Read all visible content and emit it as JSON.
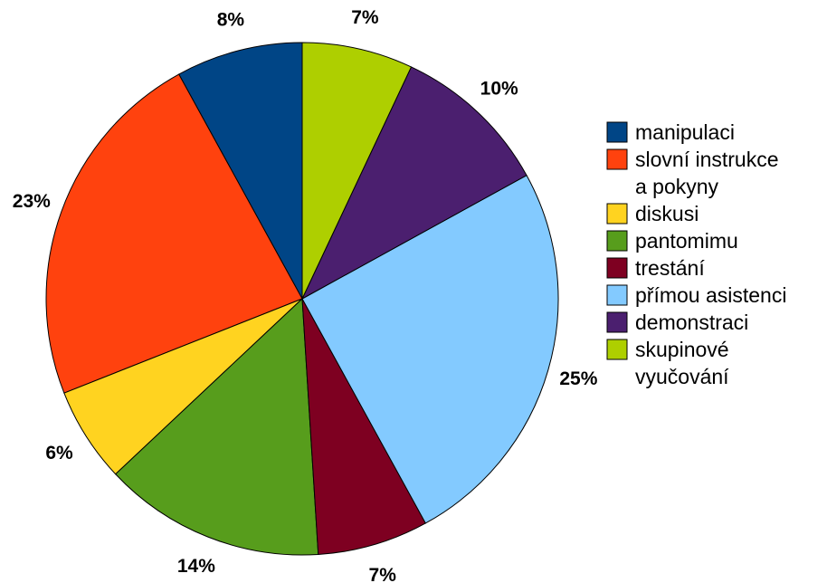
{
  "chart_data": {
    "type": "pie",
    "title": "",
    "legend_position": "right",
    "slices": [
      {
        "label": "manipulaci",
        "legend_lines": [
          "manipulaci"
        ],
        "value": 8,
        "value_label": "8%",
        "color": "#004586"
      },
      {
        "label": "slovní instrukce a pokyny",
        "legend_lines": [
          "slovní instrukce",
          " a pokyny"
        ],
        "value": 23,
        "value_label": "23%",
        "color": "#FF420E"
      },
      {
        "label": "diskusi",
        "legend_lines": [
          "diskusi"
        ],
        "value": 6,
        "value_label": "6%",
        "color": "#FFD320"
      },
      {
        "label": "pantomimu",
        "legend_lines": [
          "pantomimu"
        ],
        "value": 14,
        "value_label": "14%",
        "color": "#579D1C"
      },
      {
        "label": "trestání",
        "legend_lines": [
          "trestání"
        ],
        "value": 7,
        "value_label": "7%",
        "color": "#7E0021"
      },
      {
        "label": "přímou asistenci",
        "legend_lines": [
          "přímou asistenci"
        ],
        "value": 25,
        "value_label": "25%",
        "color": "#83CAFF"
      },
      {
        "label": "demonstraci",
        "legend_lines": [
          "demonstraci"
        ],
        "value": 10,
        "value_label": "10%",
        "color": "#4B1F6F"
      },
      {
        "label": "skupinové vyučování",
        "legend_lines": [
          "skupinové",
          "vyučování"
        ],
        "value": 7,
        "value_label": "7%",
        "color": "#AECF00"
      }
    ]
  }
}
